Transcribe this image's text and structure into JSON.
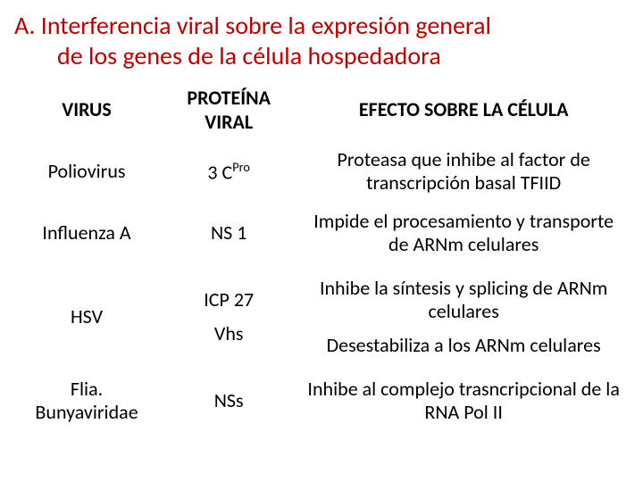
{
  "title": {
    "line1": "A. Interferencia viral sobre la expresión general",
    "line2": "de  los genes de la célula hospedadora",
    "color": "#c00000",
    "fontsize": 28
  },
  "table": {
    "header_bg": "#ffffff",
    "header_color": "#000000",
    "body_text_color": "#000000",
    "columns": [
      "VIRUS",
      "PROTEÍNA VIRAL",
      "EFECTO SOBRE LA CÉLULA"
    ],
    "col_widths_pct": [
      24,
      22,
      54
    ],
    "rows": [
      {
        "virus": "Poliovirus",
        "proteins": [
          "3 CPro"
        ],
        "proteins_sup": [
          true
        ],
        "effects": [
          "Proteasa que inhibe al factor de transcripción basal TFIID"
        ]
      },
      {
        "virus": "Influenza A",
        "proteins": [
          "NS 1"
        ],
        "proteins_sup": [
          false
        ],
        "effects": [
          "Impide el procesamiento y transporte de ARNm celulares"
        ]
      },
      {
        "virus": "HSV",
        "proteins": [
          "ICP 27",
          "Vhs"
        ],
        "proteins_sup": [
          false,
          false
        ],
        "effects": [
          "Inhibe la síntesis y splicing de ARNm celulares",
          "Desestabiliza a los ARNm celulares"
        ]
      },
      {
        "virus": "Flia. Bunyaviridae",
        "proteins": [
          "NSs"
        ],
        "proteins_sup": [
          false
        ],
        "effects": [
          "Inhibe al complejo trasncripcional de la RNA Pol II"
        ]
      }
    ]
  }
}
